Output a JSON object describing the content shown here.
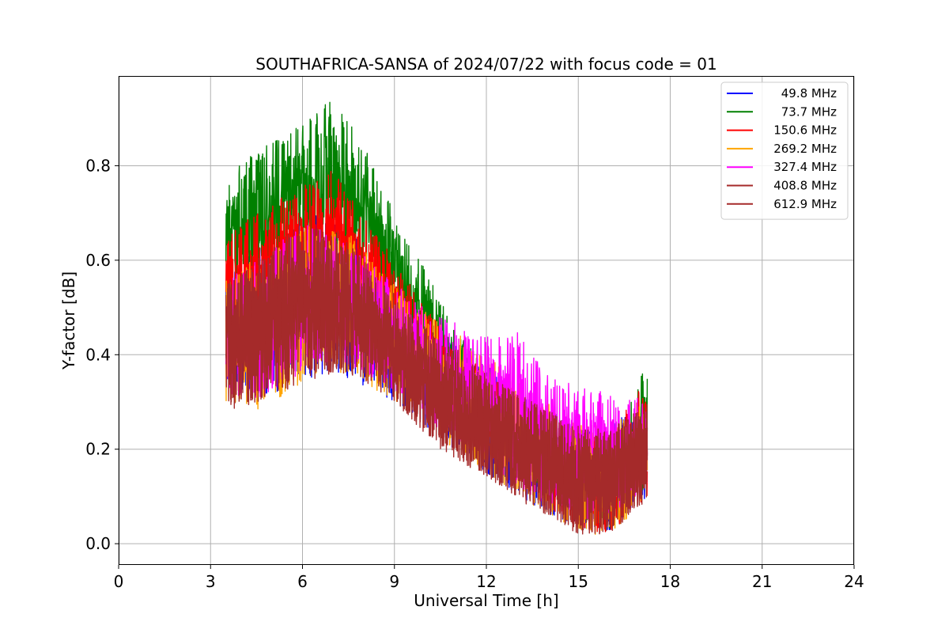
{
  "chart_data": {
    "type": "line",
    "title": "SOUTHAFRICA-SANSA of 2024/07/22 with focus code = 01",
    "xlabel": "Universal Time [h]",
    "ylabel": "Y-factor [dB]",
    "xlim": [
      0,
      24
    ],
    "ylim": [
      -0.045,
      0.99
    ],
    "xticks": [
      0,
      3,
      6,
      9,
      12,
      15,
      18,
      21,
      24
    ],
    "yticks": [
      0.0,
      0.2,
      0.4,
      0.6,
      0.8
    ],
    "ytick_labels": [
      "0.0",
      "0.2",
      "0.4",
      "0.6",
      "0.8"
    ],
    "grid": true,
    "legend_position": "top-right",
    "x_range": [
      3.5,
      17.25
    ],
    "series": [
      {
        "name": "49.8 MHz",
        "color": "#0000ff",
        "envelope": {
          "x": [
            3.5,
            4.5,
            6,
            7.5,
            9,
            10.5,
            12,
            13.5,
            15,
            16,
            17.25
          ],
          "lower": [
            0.35,
            0.3,
            0.35,
            0.35,
            0.3,
            0.22,
            0.15,
            0.08,
            0.03,
            0.02,
            0.1
          ],
          "upper": [
            0.58,
            0.62,
            0.7,
            0.68,
            0.55,
            0.45,
            0.38,
            0.3,
            0.25,
            0.25,
            0.3
          ]
        }
      },
      {
        "name": "73.7 MHz",
        "color": "#008000",
        "envelope": {
          "x": [
            3.5,
            4.5,
            6,
            7,
            8,
            9,
            10,
            11,
            12,
            13.5,
            15,
            16,
            16.5,
            17,
            17.25
          ],
          "lower": [
            0.5,
            0.55,
            0.6,
            0.62,
            0.55,
            0.45,
            0.38,
            0.3,
            0.22,
            0.12,
            0.05,
            0.03,
            0.08,
            0.1,
            0.12
          ],
          "upper": [
            0.78,
            0.83,
            0.9,
            0.94,
            0.85,
            0.7,
            0.58,
            0.45,
            0.38,
            0.3,
            0.24,
            0.24,
            0.26,
            0.36,
            0.38
          ]
        }
      },
      {
        "name": "150.6 MHz",
        "color": "#ff0000",
        "envelope": {
          "x": [
            3.5,
            4.5,
            6,
            7,
            8,
            9,
            10,
            11,
            12,
            13.5,
            15,
            16,
            17.25
          ],
          "lower": [
            0.4,
            0.42,
            0.5,
            0.52,
            0.48,
            0.4,
            0.32,
            0.25,
            0.2,
            0.1,
            0.03,
            0.02,
            0.1
          ],
          "upper": [
            0.65,
            0.7,
            0.76,
            0.79,
            0.7,
            0.6,
            0.5,
            0.42,
            0.36,
            0.3,
            0.24,
            0.24,
            0.35
          ]
        }
      },
      {
        "name": "269.2 MHz",
        "color": "#ffa500",
        "envelope": {
          "x": [
            3.5,
            4.5,
            6,
            7.5,
            9,
            10.5,
            12,
            13.5,
            15,
            16,
            17.25
          ],
          "lower": [
            0.3,
            0.28,
            0.34,
            0.36,
            0.3,
            0.22,
            0.15,
            0.08,
            0.03,
            0.01,
            0.1
          ],
          "upper": [
            0.58,
            0.6,
            0.68,
            0.66,
            0.55,
            0.47,
            0.4,
            0.32,
            0.26,
            0.25,
            0.3
          ]
        }
      },
      {
        "name": "327.4 MHz",
        "color": "#ff00ff",
        "envelope": {
          "x": [
            3.5,
            4.5,
            6,
            7.5,
            9,
            10.5,
            12,
            13,
            14,
            15,
            15.5,
            16.5,
            17.25
          ],
          "lower": [
            0.32,
            0.3,
            0.36,
            0.38,
            0.32,
            0.24,
            0.18,
            0.12,
            0.08,
            0.05,
            0.05,
            0.08,
            0.12
          ],
          "upper": [
            0.56,
            0.6,
            0.68,
            0.64,
            0.55,
            0.48,
            0.44,
            0.45,
            0.36,
            0.33,
            0.33,
            0.3,
            0.32
          ]
        }
      },
      {
        "name": "408.8 MHz",
        "color": "#a52a2a",
        "envelope": {
          "x": [
            3.5,
            4.5,
            6,
            7.5,
            9,
            10.5,
            12,
            13.5,
            15,
            16,
            17.25
          ],
          "lower": [
            0.28,
            0.3,
            0.35,
            0.37,
            0.3,
            0.2,
            0.14,
            0.08,
            0.02,
            0.02,
            0.09
          ],
          "upper": [
            0.56,
            0.6,
            0.68,
            0.64,
            0.53,
            0.44,
            0.36,
            0.3,
            0.25,
            0.24,
            0.3
          ]
        }
      },
      {
        "name": "612.9 MHz",
        "color": "#a52a2a",
        "envelope": {
          "x": [
            3.5,
            4.5,
            6,
            7.5,
            9,
            10.5,
            12,
            13.5,
            15,
            16,
            17.25
          ],
          "lower": [
            0.27,
            0.3,
            0.34,
            0.36,
            0.3,
            0.2,
            0.14,
            0.07,
            0.02,
            0.03,
            0.08
          ],
          "upper": [
            0.55,
            0.6,
            0.68,
            0.64,
            0.52,
            0.43,
            0.35,
            0.3,
            0.25,
            0.24,
            0.3
          ]
        }
      }
    ]
  }
}
